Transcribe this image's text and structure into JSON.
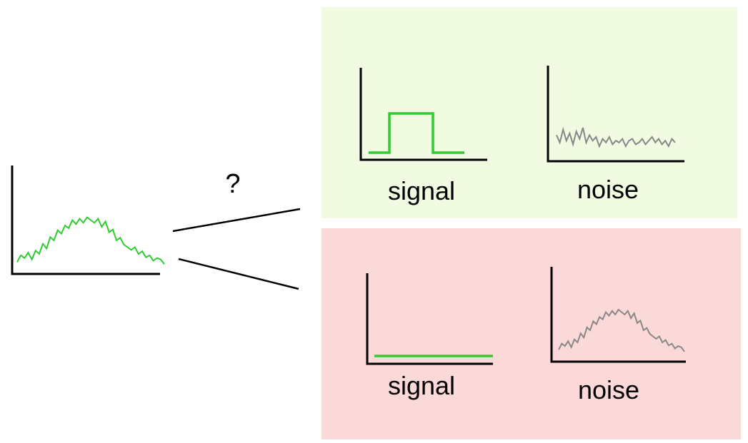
{
  "question_mark": "?",
  "colors": {
    "axis": "#000000",
    "signal_trace": "#2ecc2e",
    "noise_trace": "#888888",
    "upper_panel_bg": "#f1fbe2",
    "lower_panel_bg": "#fcd9d9",
    "connector": "#000000"
  },
  "upper_panel": {
    "signal_label": "signal",
    "noise_label": "noise",
    "signal_shape": "step pulse",
    "noise_shape": "low flat random noise"
  },
  "lower_panel": {
    "signal_label": "signal",
    "noise_label": "noise",
    "signal_shape": "flat line at zero",
    "noise_shape": "noisy bump (same as observed data)"
  },
  "observed": {
    "shape": "noisy bump"
  }
}
